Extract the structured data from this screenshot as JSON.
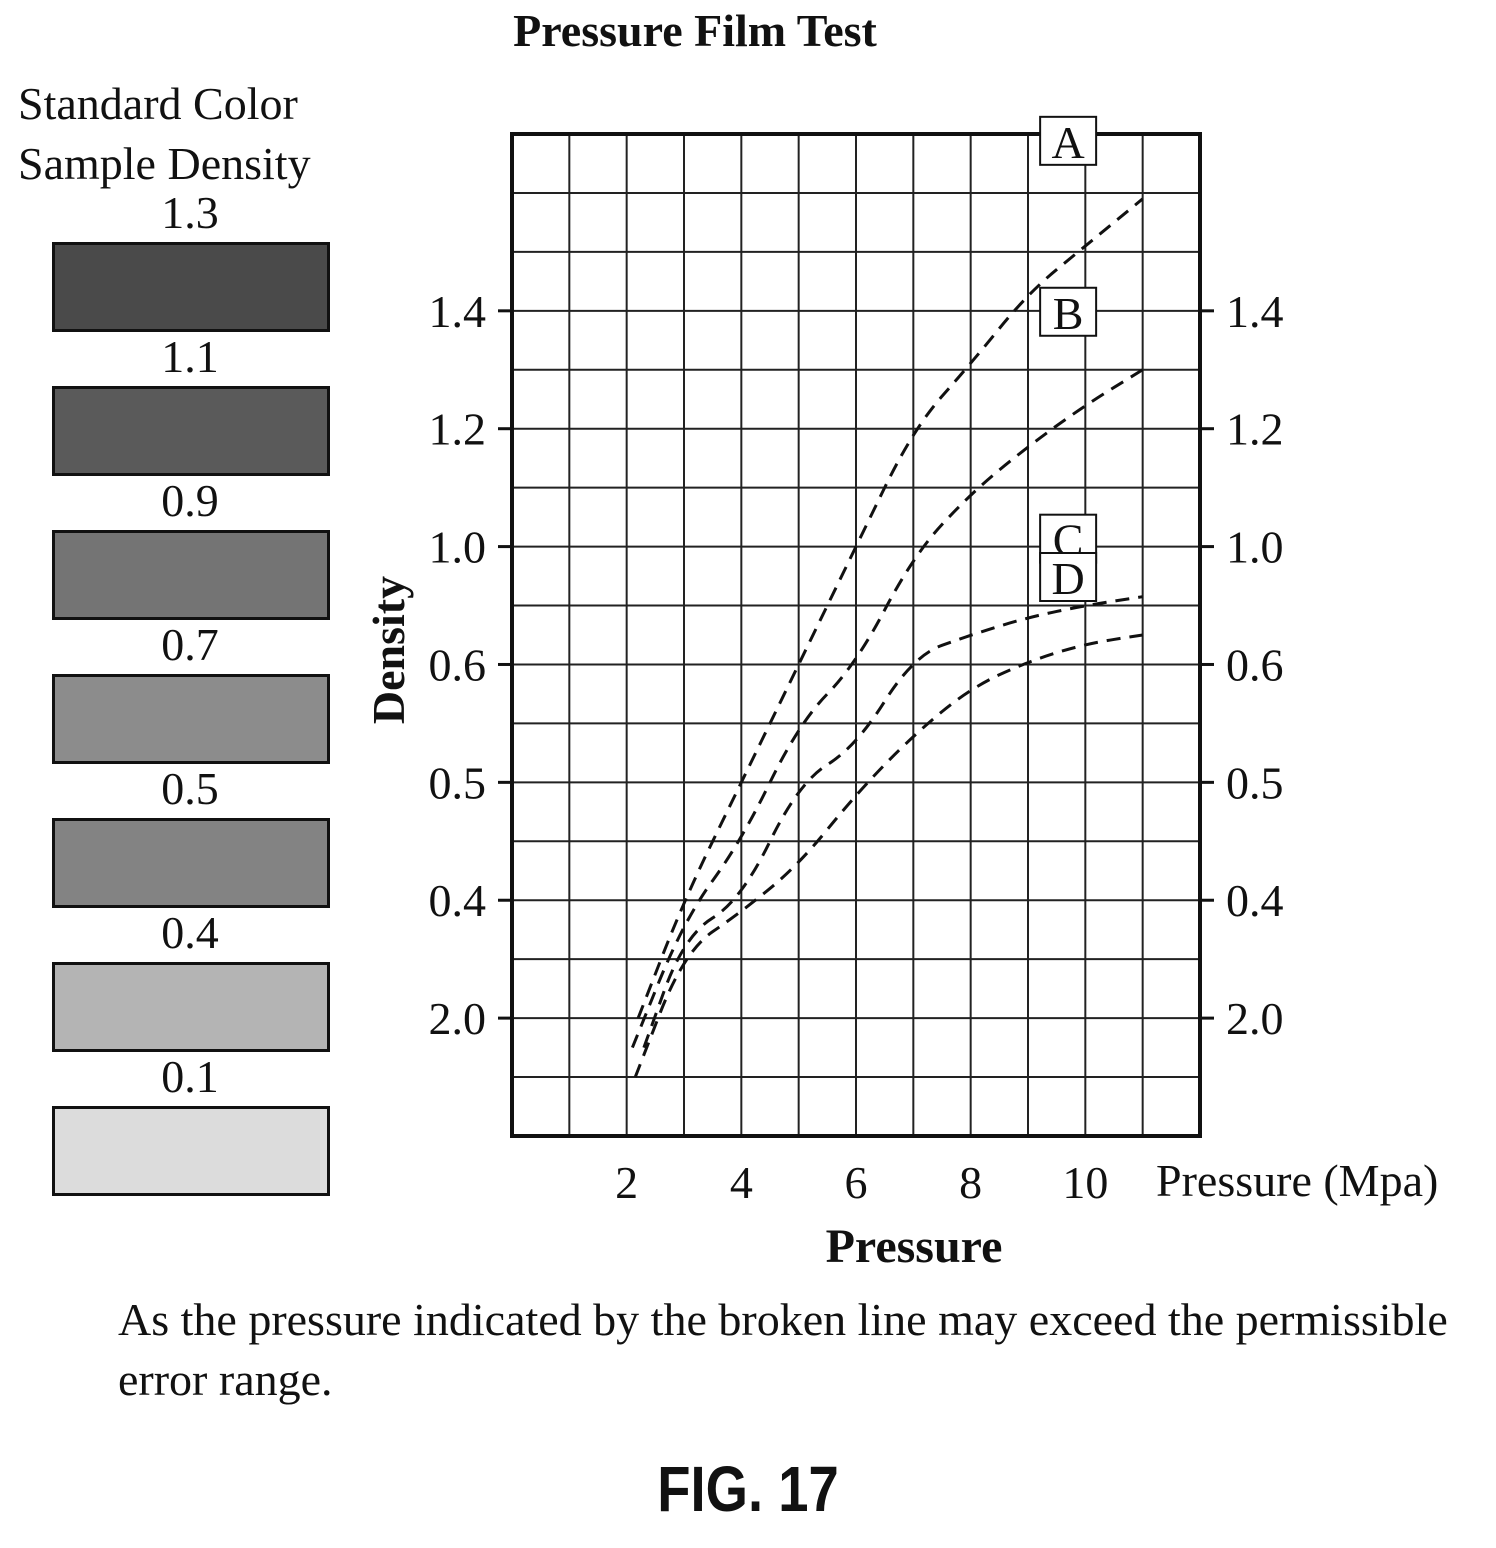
{
  "legend": {
    "heading_line1": "Standard Color",
    "heading_line2": "Sample Density",
    "swatches": [
      {
        "label": "1.3",
        "color": "#4a4a4a"
      },
      {
        "label": "1.1",
        "color": "#5a5a5a"
      },
      {
        "label": "0.9",
        "color": "#747474"
      },
      {
        "label": "0.7",
        "color": "#8c8c8c"
      },
      {
        "label": "0.5",
        "color": "#838383"
      },
      {
        "label": "0.4",
        "color": "#b4b4b4"
      },
      {
        "label": "0.1",
        "color": "#dcdcdc"
      }
    ]
  },
  "chart_data": {
    "type": "line",
    "title": "Pressure Film Test",
    "xlabel": "Pressure",
    "ylabel": "Density",
    "x_unit_label": "Pressure (Mpa)",
    "x_ticks": [
      "2",
      "4",
      "6",
      "8",
      "10"
    ],
    "y_tick_labels": [
      "2.0",
      "0.4",
      "0.5",
      "0.6",
      "1.0",
      "1.2",
      "1.4"
    ],
    "xlim": [
      0,
      12
    ],
    "grid": true,
    "line_style": "dashed",
    "series": [
      {
        "name": "A",
        "points": [
          [
            2.2,
            2.0
          ],
          [
            3,
            0.4
          ],
          [
            4,
            0.5
          ],
          [
            5,
            0.6
          ],
          [
            6,
            1.0
          ],
          [
            7,
            1.2
          ],
          [
            8,
            1.31
          ],
          [
            9,
            1.43
          ],
          [
            10,
            1.51
          ],
          [
            11,
            1.59
          ]
        ]
      },
      {
        "name": "B",
        "points": [
          [
            2.1,
            1.9
          ],
          [
            3,
            0.35
          ],
          [
            4,
            0.45
          ],
          [
            5,
            0.55
          ],
          [
            6,
            0.6
          ],
          [
            7,
            0.97
          ],
          [
            8,
            1.09
          ],
          [
            9,
            1.17
          ],
          [
            10,
            1.24
          ],
          [
            11,
            1.3
          ]
        ]
      },
      {
        "name": "C",
        "points": [
          [
            2.3,
            1.9
          ],
          [
            3,
            0.31
          ],
          [
            4,
            0.4
          ],
          [
            5,
            0.5
          ],
          [
            6,
            0.53
          ],
          [
            7,
            0.63
          ],
          [
            8,
            0.7
          ],
          [
            9,
            0.76
          ],
          [
            10,
            0.8
          ],
          [
            11,
            0.83
          ]
        ]
      },
      {
        "name": "D",
        "points": [
          [
            2.15,
            1.8
          ],
          [
            3,
            0.27
          ],
          [
            4,
            0.37
          ],
          [
            5,
            0.43
          ],
          [
            6,
            0.49
          ],
          [
            7,
            0.54
          ],
          [
            8,
            0.58
          ],
          [
            9,
            0.61
          ],
          [
            10,
            0.67
          ],
          [
            11,
            0.7
          ]
        ]
      }
    ]
  },
  "caption": "As the pressure indicated by the broken line may exceed the permissible error range.",
  "figure_label": "FIG. 17"
}
